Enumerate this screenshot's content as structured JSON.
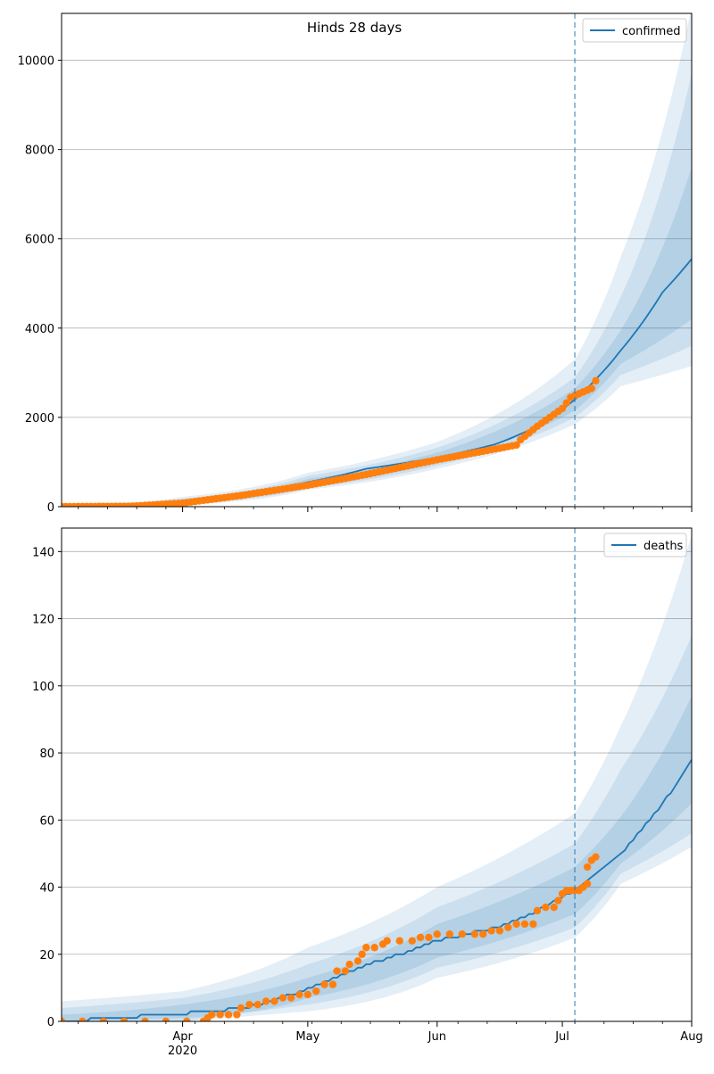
{
  "figure": {
    "title": "Hinds 28 days"
  },
  "colors": {
    "line": "#1f77b4",
    "observed": "#ff7f0e",
    "band": "#1f77b4",
    "grid": "#b0b0b0",
    "forecast_line": "#1f77b4"
  },
  "chart_data": [
    {
      "type": "line",
      "panel": "top",
      "title": "Hinds 28 days",
      "legend": {
        "entry": "confirmed",
        "placement": "top-right"
      },
      "grid": "horizontal",
      "xlim": [
        "2020-03-03",
        "2020-08-01"
      ],
      "ylim": [
        0,
        11050
      ],
      "yticks": [
        0,
        2000,
        4000,
        6000,
        8000,
        10000
      ],
      "xticks": [
        {
          "date": "2020-04-01",
          "label": "Apr",
          "sublabel": "2020"
        },
        {
          "date": "2020-05-01",
          "label": "May",
          "sublabel": ""
        },
        {
          "date": "2020-06-01",
          "label": "Jun",
          "sublabel": ""
        },
        {
          "date": "2020-07-01",
          "label": "Jul",
          "sublabel": ""
        },
        {
          "date": "2020-08-01",
          "label": "Aug",
          "sublabel": ""
        }
      ],
      "forecast_start": "2020-07-04",
      "model_anchors": [
        {
          "x": "2020-03-03",
          "y": 5
        },
        {
          "x": "2020-03-21",
          "y": 30
        },
        {
          "x": "2020-04-01",
          "y": 120
        },
        {
          "x": "2020-04-15",
          "y": 280
        },
        {
          "x": "2020-05-01",
          "y": 550
        },
        {
          "x": "2020-05-15",
          "y": 850
        },
        {
          "x": "2020-06-01",
          "y": 1100
        },
        {
          "x": "2020-06-15",
          "y": 1400
        },
        {
          "x": "2020-06-25",
          "y": 1800
        },
        {
          "x": "2020-07-04",
          "y": 2400
        },
        {
          "x": "2020-07-15",
          "y": 3500
        },
        {
          "x": "2020-07-25",
          "y": 4800
        },
        {
          "x": "2020-08-01",
          "y": 5550
        }
      ],
      "band_anchors": [
        {
          "x": "2020-03-03",
          "lo95": 0,
          "hi95": 30,
          "lo80": 0,
          "hi80": 20,
          "lo50": 0,
          "hi50": 12
        },
        {
          "x": "2020-04-01",
          "lo95": 50,
          "hi95": 220,
          "lo80": 70,
          "hi80": 180,
          "lo50": 90,
          "hi50": 150
        },
        {
          "x": "2020-05-01",
          "lo95": 380,
          "hi95": 760,
          "lo80": 420,
          "hi80": 690,
          "lo50": 470,
          "hi50": 620
        },
        {
          "x": "2020-06-01",
          "lo95": 850,
          "hi95": 1450,
          "lo80": 920,
          "hi80": 1320,
          "lo50": 990,
          "hi50": 1210
        },
        {
          "x": "2020-07-04",
          "lo95": 1850,
          "hi95": 3300,
          "lo80": 2000,
          "hi80": 2900,
          "lo50": 2150,
          "hi50": 2650
        },
        {
          "x": "2020-07-15",
          "lo95": 2700,
          "hi95": 5600,
          "lo80": 2950,
          "hi80": 4700,
          "lo50": 3200,
          "hi50": 3950
        },
        {
          "x": "2020-08-01",
          "lo95": 3150,
          "hi95": 11200,
          "lo80": 3600,
          "hi80": 9700,
          "lo50": 4200,
          "hi50": 7600
        }
      ],
      "observed_anchors": [
        {
          "x": "2020-03-03",
          "y": 0
        },
        {
          "x": "2020-03-20",
          "y": 10
        },
        {
          "x": "2020-04-01",
          "y": 80
        },
        {
          "x": "2020-04-15",
          "y": 250
        },
        {
          "x": "2020-05-01",
          "y": 480
        },
        {
          "x": "2020-05-15",
          "y": 720
        },
        {
          "x": "2020-06-01",
          "y": 1050
        },
        {
          "x": "2020-06-20",
          "y": 1380
        },
        {
          "x": "2020-06-21",
          "y": 1500
        },
        {
          "x": "2020-06-25",
          "y": 1800
        },
        {
          "x": "2020-07-01",
          "y": 2200
        },
        {
          "x": "2020-07-03",
          "y": 2450
        },
        {
          "x": "2020-07-08",
          "y": 2650
        },
        {
          "x": "2020-07-09",
          "y": 2820
        }
      ]
    },
    {
      "type": "line",
      "panel": "bottom",
      "title": "",
      "legend": {
        "entry": "deaths",
        "placement": "top-right"
      },
      "grid": "horizontal",
      "xlim": [
        "2020-03-03",
        "2020-08-01"
      ],
      "ylim": [
        0,
        147
      ],
      "yticks": [
        0,
        20,
        40,
        60,
        80,
        100,
        120,
        140
      ],
      "xticks": [
        {
          "date": "2020-04-01",
          "label": "Apr",
          "sublabel": "2020"
        },
        {
          "date": "2020-05-01",
          "label": "May",
          "sublabel": ""
        },
        {
          "date": "2020-06-01",
          "label": "Jun",
          "sublabel": ""
        },
        {
          "date": "2020-07-01",
          "label": "Jul",
          "sublabel": ""
        },
        {
          "date": "2020-08-01",
          "label": "Aug",
          "sublabel": ""
        }
      ],
      "forecast_start": "2020-07-04",
      "model_anchors": [
        {
          "x": "2020-03-03",
          "y": 0
        },
        {
          "x": "2020-03-28",
          "y": 2
        },
        {
          "x": "2020-04-15",
          "y": 4
        },
        {
          "x": "2020-05-01",
          "y": 10
        },
        {
          "x": "2020-05-15",
          "y": 17
        },
        {
          "x": "2020-06-01",
          "y": 24
        },
        {
          "x": "2020-06-15",
          "y": 28
        },
        {
          "x": "2020-06-25",
          "y": 33
        },
        {
          "x": "2020-07-04",
          "y": 39
        },
        {
          "x": "2020-07-15",
          "y": 50
        },
        {
          "x": "2020-07-25",
          "y": 65
        },
        {
          "x": "2020-08-01",
          "y": 78
        }
      ],
      "band_anchors": [
        {
          "x": "2020-03-03",
          "lo95": 0,
          "hi95": 6,
          "lo80": 0,
          "hi80": 4,
          "lo50": 0,
          "hi50": 2
        },
        {
          "x": "2020-04-01",
          "lo95": 0,
          "hi95": 9,
          "lo80": 0,
          "hi80": 7,
          "lo50": 1,
          "hi50": 5
        },
        {
          "x": "2020-05-01",
          "lo95": 3,
          "hi95": 22,
          "lo80": 5,
          "hi80": 17,
          "lo50": 7,
          "hi50": 13
        },
        {
          "x": "2020-06-01",
          "lo95": 13,
          "hi95": 40,
          "lo80": 16,
          "hi80": 34,
          "lo50": 19,
          "hi50": 29
        },
        {
          "x": "2020-07-04",
          "lo95": 25,
          "hi95": 62,
          "lo80": 28,
          "hi80": 53,
          "lo50": 32,
          "hi50": 46
        },
        {
          "x": "2020-07-15",
          "lo95": 41,
          "hi95": 88,
          "lo80": 44,
          "hi80": 75,
          "lo50": 47,
          "hi50": 61
        },
        {
          "x": "2020-08-01",
          "lo95": 52,
          "hi95": 145,
          "lo80": 56,
          "hi80": 115,
          "lo50": 65,
          "hi50": 97
        }
      ],
      "observed_points": [
        {
          "x": "2020-03-03",
          "y": 0
        },
        {
          "x": "2020-03-08",
          "y": 0
        },
        {
          "x": "2020-03-13",
          "y": 0
        },
        {
          "x": "2020-03-18",
          "y": 0
        },
        {
          "x": "2020-03-23",
          "y": 0
        },
        {
          "x": "2020-03-28",
          "y": 0
        },
        {
          "x": "2020-04-02",
          "y": 0
        },
        {
          "x": "2020-04-06",
          "y": 0
        },
        {
          "x": "2020-04-07",
          "y": 1
        },
        {
          "x": "2020-04-08",
          "y": 2
        },
        {
          "x": "2020-04-10",
          "y": 2
        },
        {
          "x": "2020-04-12",
          "y": 2
        },
        {
          "x": "2020-04-14",
          "y": 2
        },
        {
          "x": "2020-04-15",
          "y": 4
        },
        {
          "x": "2020-04-17",
          "y": 5
        },
        {
          "x": "2020-04-19",
          "y": 5
        },
        {
          "x": "2020-04-21",
          "y": 6
        },
        {
          "x": "2020-04-23",
          "y": 6
        },
        {
          "x": "2020-04-25",
          "y": 7
        },
        {
          "x": "2020-04-27",
          "y": 7
        },
        {
          "x": "2020-04-29",
          "y": 8
        },
        {
          "x": "2020-05-01",
          "y": 8
        },
        {
          "x": "2020-05-03",
          "y": 9
        },
        {
          "x": "2020-05-05",
          "y": 11
        },
        {
          "x": "2020-05-07",
          "y": 11
        },
        {
          "x": "2020-05-08",
          "y": 15
        },
        {
          "x": "2020-05-10",
          "y": 15
        },
        {
          "x": "2020-05-11",
          "y": 17
        },
        {
          "x": "2020-05-13",
          "y": 18
        },
        {
          "x": "2020-05-14",
          "y": 20
        },
        {
          "x": "2020-05-15",
          "y": 22
        },
        {
          "x": "2020-05-17",
          "y": 22
        },
        {
          "x": "2020-05-19",
          "y": 23
        },
        {
          "x": "2020-05-20",
          "y": 24
        },
        {
          "x": "2020-05-23",
          "y": 24
        },
        {
          "x": "2020-05-26",
          "y": 24
        },
        {
          "x": "2020-05-28",
          "y": 25
        },
        {
          "x": "2020-05-30",
          "y": 25
        },
        {
          "x": "2020-06-01",
          "y": 26
        },
        {
          "x": "2020-06-04",
          "y": 26
        },
        {
          "x": "2020-06-07",
          "y": 26
        },
        {
          "x": "2020-06-10",
          "y": 26
        },
        {
          "x": "2020-06-12",
          "y": 26
        },
        {
          "x": "2020-06-14",
          "y": 27
        },
        {
          "x": "2020-06-16",
          "y": 27
        },
        {
          "x": "2020-06-18",
          "y": 28
        },
        {
          "x": "2020-06-20",
          "y": 29
        },
        {
          "x": "2020-06-22",
          "y": 29
        },
        {
          "x": "2020-06-24",
          "y": 29
        },
        {
          "x": "2020-06-25",
          "y": 33
        },
        {
          "x": "2020-06-27",
          "y": 34
        },
        {
          "x": "2020-06-29",
          "y": 34
        },
        {
          "x": "2020-06-30",
          "y": 36
        },
        {
          "x": "2020-07-01",
          "y": 38
        },
        {
          "x": "2020-07-02",
          "y": 39
        },
        {
          "x": "2020-07-03",
          "y": 39
        },
        {
          "x": "2020-07-04",
          "y": 39
        },
        {
          "x": "2020-07-05",
          "y": 39
        },
        {
          "x": "2020-07-06",
          "y": 40
        },
        {
          "x": "2020-07-07",
          "y": 41
        },
        {
          "x": "2020-07-07",
          "y": 46
        },
        {
          "x": "2020-07-08",
          "y": 48
        },
        {
          "x": "2020-07-09",
          "y": 49
        }
      ]
    }
  ]
}
